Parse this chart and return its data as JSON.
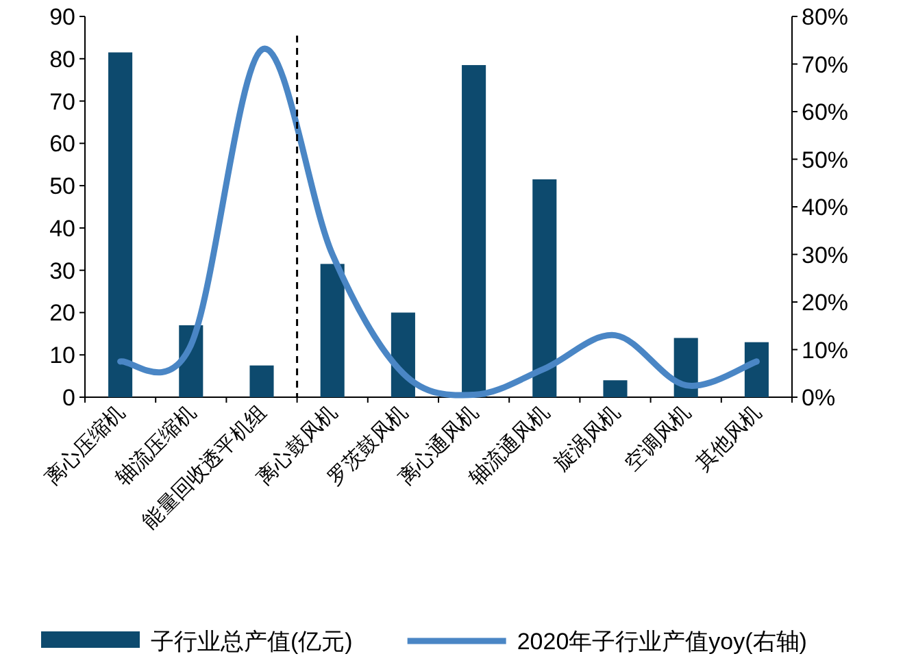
{
  "chart_data": {
    "type": "bar",
    "categories": [
      "离心压缩机",
      "轴流压缩机",
      "能量回收透平机组",
      "离心鼓风机",
      "罗茨鼓风机",
      "离心通风机",
      "轴流通风机",
      "旋涡风机",
      "空调风机",
      "其他风机"
    ],
    "series": [
      {
        "name": "子行业总产值(亿元)",
        "color": "#0d4a6e",
        "values": [
          81.5,
          17,
          7.5,
          31.5,
          20,
          78.5,
          51.5,
          4,
          14,
          13
        ]
      },
      {
        "name": "2020年子行业产值yoy(右轴)",
        "color": "#4a86c5",
        "type": "line",
        "axis": "y2",
        "values": [
          7.5,
          11,
          73,
          30,
          5,
          0.5,
          6,
          13,
          2.5,
          7.5
        ]
      }
    ],
    "ylim": [
      0,
      90
    ],
    "yticks": [
      0,
      10,
      20,
      30,
      40,
      50,
      60,
      70,
      80,
      90
    ],
    "y2lim": [
      0,
      80
    ],
    "y2ticks": [
      {
        "value": 0,
        "label": "0%"
      },
      {
        "value": 10,
        "label": "10%"
      },
      {
        "value": 20,
        "label": "20%"
      },
      {
        "value": 30,
        "label": "30%"
      },
      {
        "value": 40,
        "label": "40%"
      },
      {
        "value": 50,
        "label": "50%"
      },
      {
        "value": 60,
        "label": "60%"
      },
      {
        "value": 70,
        "label": "70%"
      },
      {
        "value": 80,
        "label": "80%"
      }
    ],
    "grid": false,
    "legend": "bottom",
    "marker": "none",
    "line_style": "solid"
  }
}
